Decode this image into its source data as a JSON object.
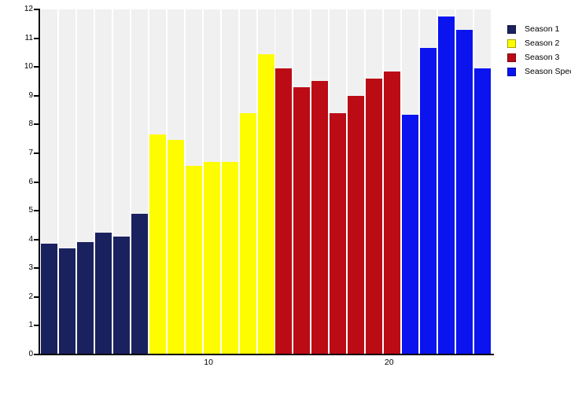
{
  "chart": {
    "background_color": "#ffffff",
    "plot_background_color": "#f1f0f1",
    "grid_color": "#ffffff",
    "axis_color": "#000000",
    "y_axis": {
      "min": 0,
      "max": 12,
      "tick_step": 1,
      "tick_labels": [
        "0",
        "1",
        "2",
        "3",
        "4",
        "5",
        "6",
        "7",
        "8",
        "9",
        "10",
        "11",
        "12"
      ]
    },
    "x_axis": {
      "tick_labels": [
        "10",
        "20"
      ],
      "tick_positions": [
        10,
        20
      ]
    },
    "legend": {
      "position": "right-top",
      "items": [
        {
          "label": "Season 1",
          "color": "#1a215f"
        },
        {
          "label": "Season 2",
          "color": "#fdfd00"
        },
        {
          "label": "Season 3",
          "color": "#bb0b15"
        },
        {
          "label": "Season Spec",
          "color": "#0b13ef"
        }
      ]
    }
  },
  "chart_data": {
    "type": "bar",
    "title": "",
    "xlabel": "",
    "ylabel": "",
    "ylim": [
      0,
      12
    ],
    "xticks": [
      10,
      20
    ],
    "grid": "vertical white slot separators on light gray plot background",
    "legend_position": "right",
    "x_unit": "episode index 1-25, bars consecutive left to right",
    "series": [
      {
        "name": "Season 1",
        "color": "#1a215f",
        "episodes": [
          1,
          2,
          3,
          4,
          5,
          6
        ],
        "values": [
          3.85,
          3.7,
          3.9,
          4.25,
          4.1,
          4.9
        ]
      },
      {
        "name": "Season 2",
        "color": "#fdfd00",
        "episodes": [
          7,
          8,
          9,
          10,
          11,
          12,
          13
        ],
        "values": [
          7.65,
          7.45,
          6.55,
          6.7,
          6.7,
          8.4,
          10.45
        ]
      },
      {
        "name": "Season 3",
        "color": "#bb0b15",
        "episodes": [
          14,
          15,
          16,
          17,
          18,
          19,
          20
        ],
        "values": [
          9.95,
          9.3,
          9.5,
          8.4,
          9.0,
          9.6,
          9.85
        ]
      },
      {
        "name": "Season Spec",
        "color": "#0b13ef",
        "episodes": [
          21,
          22,
          23,
          24,
          25
        ],
        "values": [
          8.35,
          10.65,
          11.75,
          11.3,
          9.95
        ]
      }
    ]
  }
}
